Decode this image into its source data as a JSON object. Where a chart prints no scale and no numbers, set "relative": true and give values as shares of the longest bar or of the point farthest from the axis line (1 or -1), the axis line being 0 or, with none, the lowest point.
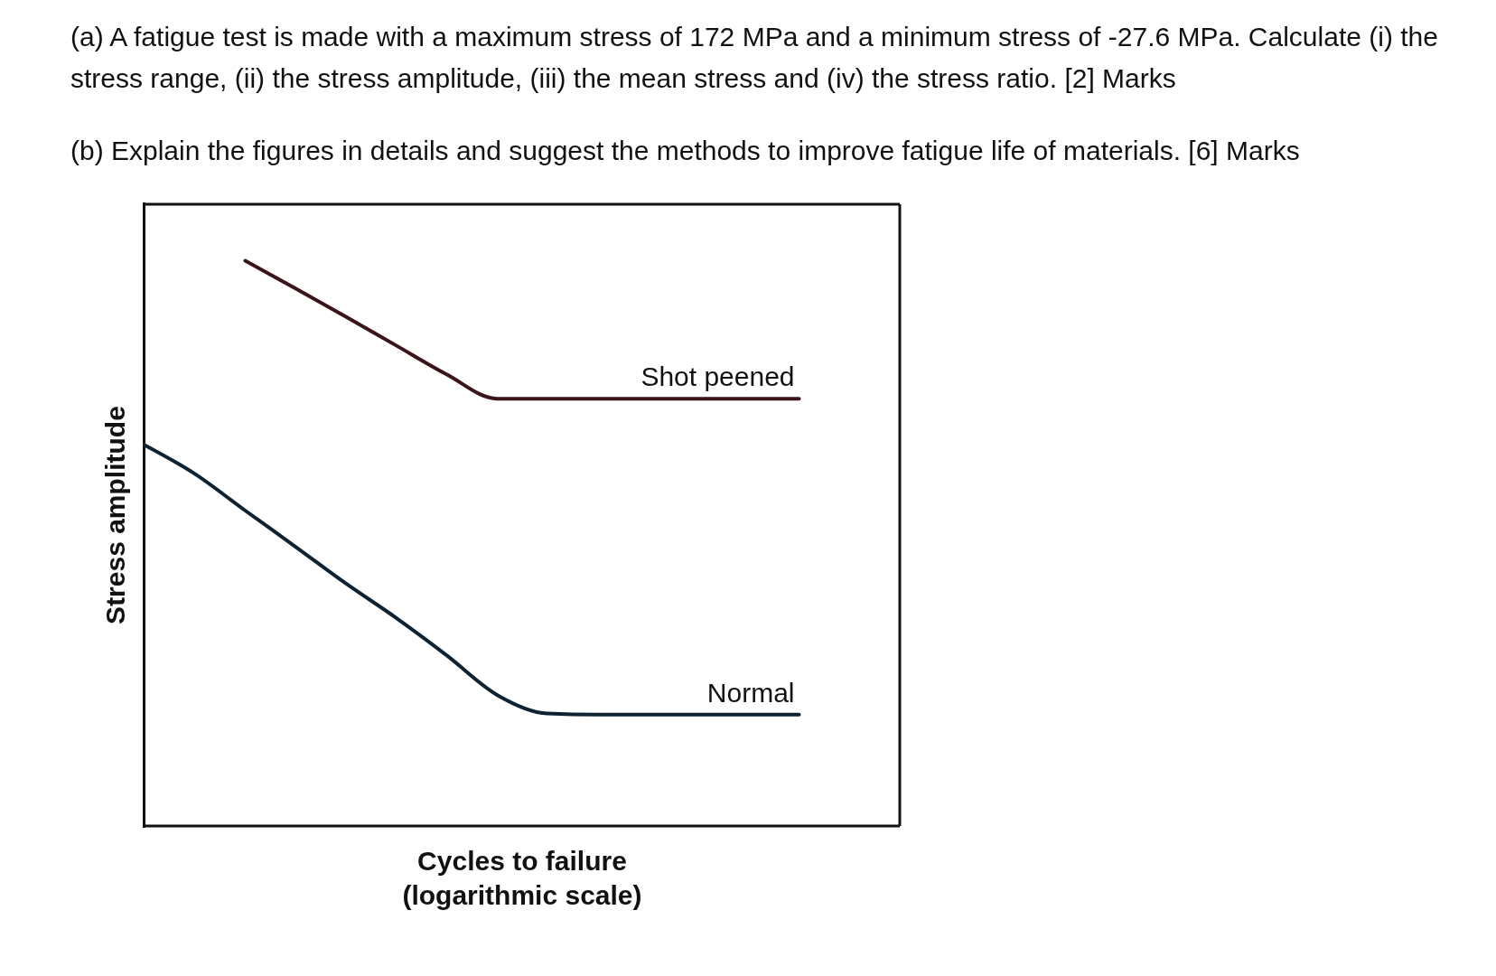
{
  "chart_data": {
    "type": "line",
    "title": "(a) A fatigue test is made with a maximum stress of 172 MPa and a minimum stress of -27.6 MPa. Calculate (i) the stress range, (ii) the stress amplitude, (iii) the mean stress and (iv) the stress ratio.    [2] Marks",
    "subtitle": "(b) Explain the figures in details and suggest the methods to improve fatigue life of materials.    [6] Marks",
    "xlabel": "Cycles to failure (logarithmic scale)",
    "ylabel": "Stress amplitude",
    "relative": true,
    "categories": [
      null,
      null,
      null,
      null,
      null,
      null,
      null,
      null,
      null,
      null,
      null,
      null,
      null,
      null,
      null,
      null
    ],
    "series": [
      {
        "name": "Shot peened",
        "color": "#3a1418",
        "values": [
          null,
          null,
          1,
          0.951,
          0.901,
          0.85,
          0.799,
          0.756,
          0.756,
          0.756,
          0.756,
          0.756,
          0.756,
          0.756,
          null,
          null
        ]
      },
      {
        "name": "Normal",
        "color": "#0d2333",
        "values": [
          0.674,
          0.623,
          0.558,
          0.494,
          0.429,
          0.368,
          0.302,
          0.232,
          0.199,
          0.197,
          0.197,
          0.197,
          0.197,
          0.197,
          null,
          null
        ]
      }
    ],
    "grid": false,
    "legend": false,
    "marker": "none",
    "line_style": "solid"
  }
}
